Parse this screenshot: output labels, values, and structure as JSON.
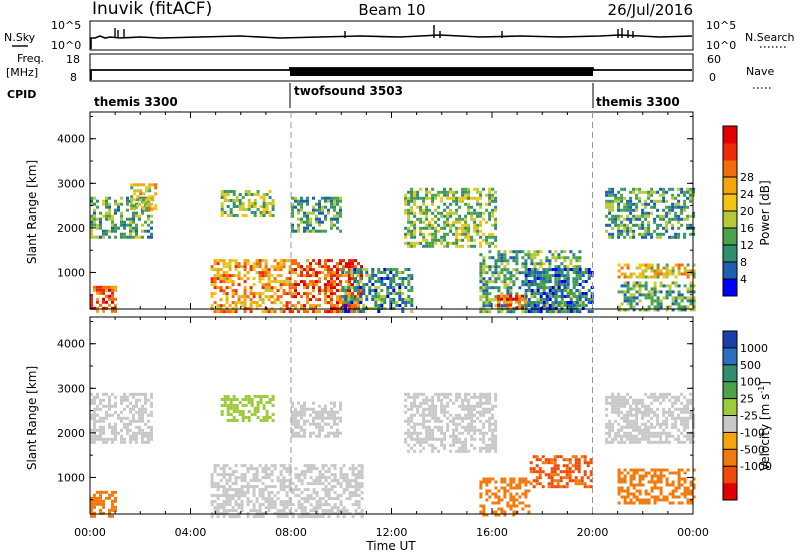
{
  "header": {
    "station": "Inuvik (fitACF)",
    "beam": "Beam 10",
    "date": "26/Jul/2016"
  },
  "top_panels": {
    "nsky_label": "N.Sky",
    "nsky_ticks": [
      "10^5",
      "10^0"
    ],
    "nsearch_label": "N.Search",
    "nsearch_ticks": [
      "10^5",
      "10^0"
    ],
    "freq_label": "Freq.",
    "freq_unit": "[MHz]",
    "freq_ticks": [
      "18",
      "8"
    ],
    "nave_label": "Nave",
    "nave_ticks": [
      "60",
      "0"
    ],
    "cpid_label": "CPID",
    "cpid_segments": [
      {
        "label": "themis 3300",
        "start_h": 0,
        "end_h": 8
      },
      {
        "label": "twofsound 3503",
        "start_h": 8,
        "end_h": 20
      },
      {
        "label": "themis 3300",
        "start_h": 20,
        "end_h": 24
      }
    ]
  },
  "chart_data": [
    {
      "type": "heatmap",
      "title": "",
      "xlabel": "Time UT",
      "ylabel": "Slant Range [km]",
      "xlim": [
        0,
        24
      ],
      "ylim": [
        180,
        4600
      ],
      "x_ticks": [
        "00:00",
        "04:00",
        "08:00",
        "12:00",
        "16:00",
        "20:00",
        "00:00"
      ],
      "y_ticks": [
        "1000",
        "2000",
        "3000",
        "4000"
      ],
      "colorbar": {
        "label": "Power [dB]",
        "ticks": [
          "4",
          "8",
          "12",
          "16",
          "20",
          "24",
          "28"
        ],
        "colors": [
          "#0000ff",
          "#1c5fb3",
          "#2f8f6f",
          "#4aa34a",
          "#b5c93a",
          "#f2c514",
          "#f5a30f",
          "#f06d0c",
          "#ee2a0a",
          "#e00000"
        ]
      },
      "regions": [
        {
          "t0": 0.0,
          "t1": 1.0,
          "r0": 150,
          "r1": 700,
          "value": 26
        },
        {
          "t0": 0.0,
          "t1": 2.5,
          "r0": 1800,
          "r1": 2700,
          "value": 12
        },
        {
          "t0": 1.6,
          "t1": 2.6,
          "r0": 2400,
          "r1": 3000,
          "value": 18
        },
        {
          "t0": 5.2,
          "t1": 7.3,
          "r0": 2300,
          "r1": 2850,
          "value": 14
        },
        {
          "t0": 4.8,
          "t1": 8.0,
          "r0": 150,
          "r1": 1300,
          "value": 22
        },
        {
          "t0": 8.0,
          "t1": 10.8,
          "r0": 150,
          "r1": 1300,
          "value": 26
        },
        {
          "t0": 8.0,
          "t1": 10.0,
          "r0": 1900,
          "r1": 2700,
          "value": 11
        },
        {
          "t0": 10.0,
          "t1": 12.8,
          "r0": 150,
          "r1": 1100,
          "value": 10
        },
        {
          "t0": 12.5,
          "t1": 16.2,
          "r0": 1600,
          "r1": 2900,
          "value": 14
        },
        {
          "t0": 15.5,
          "t1": 19.5,
          "r0": 150,
          "r1": 1500,
          "value": 12
        },
        {
          "t0": 16.2,
          "t1": 17.3,
          "r0": 180,
          "r1": 500,
          "value": 26
        },
        {
          "t0": 17.3,
          "t1": 20.0,
          "r0": 150,
          "r1": 1100,
          "value": 8
        },
        {
          "t0": 20.5,
          "t1": 24.0,
          "r0": 1800,
          "r1": 2900,
          "value": 11
        },
        {
          "t0": 21.0,
          "t1": 24.0,
          "r0": 900,
          "r1": 1200,
          "value": 19
        },
        {
          "t0": 21.0,
          "t1": 24.0,
          "r0": 180,
          "r1": 800,
          "value": 12
        }
      ]
    },
    {
      "type": "heatmap",
      "title": "",
      "xlabel": "Time UT",
      "ylabel": "Slant Range [km]",
      "xlim": [
        0,
        24
      ],
      "ylim": [
        180,
        4600
      ],
      "x_ticks": [
        "00:00",
        "04:00",
        "08:00",
        "12:00",
        "16:00",
        "20:00",
        "00:00"
      ],
      "y_ticks": [
        "1000",
        "2000",
        "3000",
        "4000"
      ],
      "colorbar": {
        "label": "Velocity [m s",
        "label_exponent": "-1",
        "label_close": "]",
        "ticks": [
          "1000",
          "500",
          "100",
          "25",
          "-25",
          "-100",
          "-500",
          "-1000"
        ],
        "colors": [
          "#1b3fa8",
          "#2d6fbf",
          "#2f8f6f",
          "#4aa34a",
          "#9ccc3c",
          "#c8c8c8",
          "#f5a30f",
          "#f07a0c",
          "#ee4a0a",
          "#e00000"
        ]
      },
      "regions": [
        {
          "t0": 0.0,
          "t1": 1.0,
          "r0": 150,
          "r1": 700,
          "value": -300
        },
        {
          "t0": 0.0,
          "t1": 2.5,
          "r0": 1800,
          "r1": 2900,
          "value": 0
        },
        {
          "t0": 4.8,
          "t1": 10.8,
          "r0": 150,
          "r1": 1300,
          "value": 0
        },
        {
          "t0": 5.2,
          "t1": 7.3,
          "r0": 2300,
          "r1": 2850,
          "value": 50
        },
        {
          "t0": 8.0,
          "t1": 10.0,
          "r0": 1900,
          "r1": 2700,
          "value": 0
        },
        {
          "t0": 12.5,
          "t1": 16.2,
          "r0": 1600,
          "r1": 2900,
          "value": 0
        },
        {
          "t0": 15.5,
          "t1": 17.5,
          "r0": 150,
          "r1": 1000,
          "value": -300
        },
        {
          "t0": 17.5,
          "t1": 20.0,
          "r0": 800,
          "r1": 1500,
          "value": -600
        },
        {
          "t0": 20.5,
          "t1": 24.0,
          "r0": 1800,
          "r1": 2900,
          "value": 0
        },
        {
          "t0": 21.0,
          "t1": 24.0,
          "r0": 400,
          "r1": 1200,
          "value": -300
        }
      ]
    }
  ]
}
